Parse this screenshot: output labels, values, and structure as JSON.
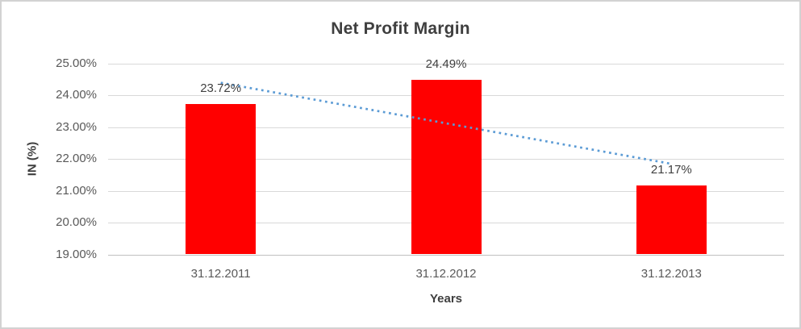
{
  "page": {
    "background": "#ffffff",
    "border_color": "#d2d2d2"
  },
  "chart_data": {
    "type": "bar",
    "title": "Net Profit Margin",
    "xlabel": "Years",
    "ylabel": "IN (%)",
    "categories": [
      "31.12.2011",
      "31.12.2012",
      "31.12.2013"
    ],
    "values": [
      23.72,
      24.49,
      21.17
    ],
    "data_labels": [
      "23.72%",
      "24.49%",
      "21.17%"
    ],
    "ylim": [
      19,
      25
    ],
    "y_tick_step": 1,
    "y_tick_labels": [
      "25.00%",
      "24.00%",
      "23.00%",
      "22.00%",
      "21.00%",
      "20.00%",
      "19.00%"
    ],
    "grid": true,
    "legend": "none",
    "bar_color": "#ff0000",
    "gridline_color": "#d9d9d9",
    "axis_line_color": "#c0c0c0",
    "title_color": "#3f3f3f",
    "tick_label_color": "#595959",
    "data_label_color": "#404040",
    "trendline": {
      "type": "linear",
      "style": "dotted",
      "color": "#5b9bd5",
      "start_value": 24.4,
      "end_value": 21.85
    }
  }
}
